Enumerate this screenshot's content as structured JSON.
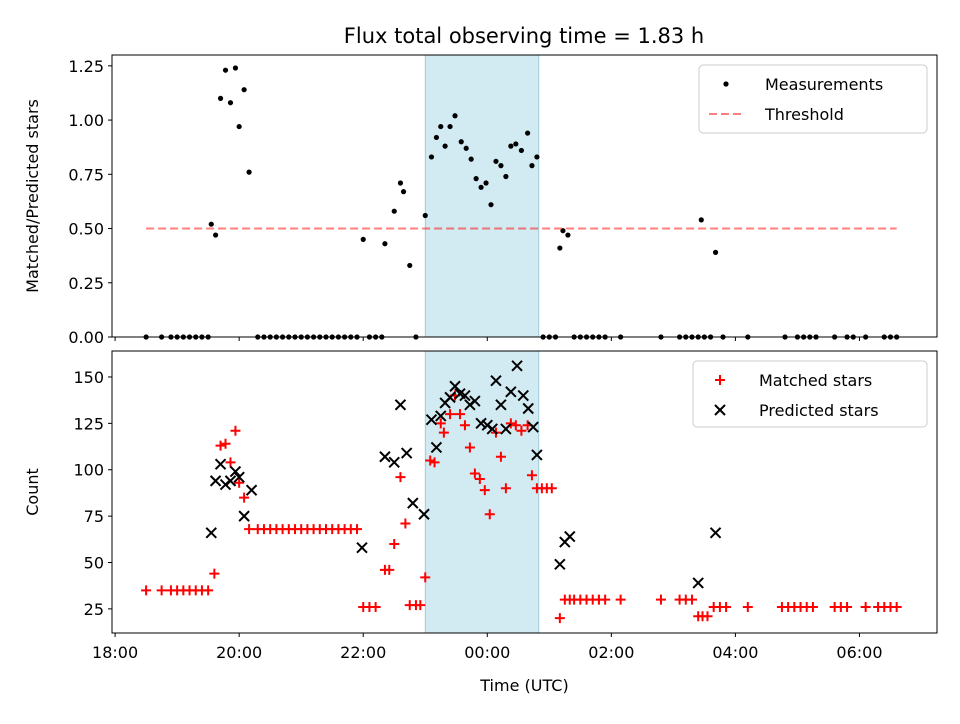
{
  "figure": {
    "title": "Flux total observing time = 1.83 h"
  },
  "chart_data": [
    {
      "type": "scatter",
      "ylabel": "Matched/Predicted stars",
      "xlabel": "",
      "x_unit": "hours since 18:00 UTC on axis",
      "xlim": [
        -0.05,
        13.25
      ],
      "ylim": [
        0,
        1.3
      ],
      "yticks": [
        0,
        0.25,
        0.5,
        0.75,
        1.0,
        1.25
      ],
      "ytick_labels": [
        "0.00",
        "0.25",
        "0.50",
        "0.75",
        "1.00",
        "1.25"
      ],
      "highlight_span": {
        "x0": 5.0,
        "x1": 6.83,
        "color": "#add8e6"
      },
      "legend": {
        "placement": "top-right"
      },
      "series": [
        {
          "name": "Measurements",
          "kind": "scatter",
          "marker": "dot",
          "color": "#000000",
          "points": [
            [
              0.5,
              0
            ],
            [
              0.75,
              0
            ],
            [
              0.9,
              0
            ],
            [
              1.0,
              0
            ],
            [
              1.1,
              0
            ],
            [
              1.2,
              0
            ],
            [
              1.3,
              0
            ],
            [
              1.4,
              0
            ],
            [
              1.5,
              0
            ],
            [
              1.55,
              0.52
            ],
            [
              1.62,
              0.47
            ],
            [
              1.7,
              1.1
            ],
            [
              1.78,
              1.23
            ],
            [
              1.86,
              1.08
            ],
            [
              1.94,
              1.24
            ],
            [
              2.0,
              0.97
            ],
            [
              2.08,
              1.14
            ],
            [
              2.16,
              0.76
            ],
            [
              2.3,
              0
            ],
            [
              2.4,
              0
            ],
            [
              2.5,
              0
            ],
            [
              2.6,
              0
            ],
            [
              2.7,
              0
            ],
            [
              2.8,
              0
            ],
            [
              2.9,
              0
            ],
            [
              3.0,
              0
            ],
            [
              3.1,
              0
            ],
            [
              3.2,
              0
            ],
            [
              3.3,
              0
            ],
            [
              3.4,
              0
            ],
            [
              3.5,
              0
            ],
            [
              3.6,
              0
            ],
            [
              3.7,
              0
            ],
            [
              3.8,
              0
            ],
            [
              3.9,
              0
            ],
            [
              4.0,
              0.45
            ],
            [
              4.1,
              0
            ],
            [
              4.2,
              0
            ],
            [
              4.3,
              0
            ],
            [
              4.35,
              0.43
            ],
            [
              4.5,
              0.58
            ],
            [
              4.6,
              0.71
            ],
            [
              4.65,
              0.67
            ],
            [
              4.75,
              0.33
            ],
            [
              4.85,
              0
            ],
            [
              5.0,
              0.56
            ],
            [
              5.1,
              0.83
            ],
            [
              5.18,
              0.92
            ],
            [
              5.25,
              0.97
            ],
            [
              5.32,
              0.88
            ],
            [
              5.4,
              0.97
            ],
            [
              5.48,
              1.02
            ],
            [
              5.58,
              0.9
            ],
            [
              5.66,
              0.87
            ],
            [
              5.74,
              0.82
            ],
            [
              5.82,
              0.73
            ],
            [
              5.9,
              0.69
            ],
            [
              5.98,
              0.71
            ],
            [
              6.06,
              0.61
            ],
            [
              6.14,
              0.81
            ],
            [
              6.22,
              0.79
            ],
            [
              6.3,
              0.74
            ],
            [
              6.38,
              0.88
            ],
            [
              6.46,
              0.89
            ],
            [
              6.55,
              0.86
            ],
            [
              6.65,
              0.94
            ],
            [
              6.72,
              0.79
            ],
            [
              6.8,
              0.83
            ],
            [
              6.9,
              0
            ],
            [
              7.0,
              0
            ],
            [
              7.1,
              0
            ],
            [
              7.17,
              0.41
            ],
            [
              7.22,
              0.49
            ],
            [
              7.3,
              0.47
            ],
            [
              7.4,
              0
            ],
            [
              7.5,
              0
            ],
            [
              7.6,
              0
            ],
            [
              7.7,
              0
            ],
            [
              7.8,
              0
            ],
            [
              7.9,
              0
            ],
            [
              8.15,
              0
            ],
            [
              8.8,
              0
            ],
            [
              9.1,
              0
            ],
            [
              9.2,
              0
            ],
            [
              9.3,
              0
            ],
            [
              9.4,
              0
            ],
            [
              9.45,
              0.54
            ],
            [
              9.5,
              0
            ],
            [
              9.6,
              0
            ],
            [
              9.68,
              0.39
            ],
            [
              9.8,
              0
            ],
            [
              10.2,
              0
            ],
            [
              10.8,
              0
            ],
            [
              11.0,
              0
            ],
            [
              11.1,
              0
            ],
            [
              11.2,
              0
            ],
            [
              11.3,
              0
            ],
            [
              11.6,
              0
            ],
            [
              11.8,
              0
            ],
            [
              11.9,
              0
            ],
            [
              12.1,
              0
            ],
            [
              12.4,
              0
            ],
            [
              12.5,
              0
            ],
            [
              12.6,
              0
            ]
          ]
        },
        {
          "name": "Threshold",
          "kind": "line",
          "dash": "dashed",
          "color": "#ff0000",
          "alpha": 0.5,
          "points": [
            [
              0.5,
              0.5
            ],
            [
              12.6,
              0.5
            ]
          ]
        }
      ]
    },
    {
      "type": "scatter",
      "ylabel": "Count",
      "xlabel": "Time (UTC)",
      "x_unit": "hours since 18:00 UTC on axis",
      "xlim": [
        -0.05,
        13.25
      ],
      "ylim": [
        12,
        164
      ],
      "yticks": [
        25,
        50,
        75,
        100,
        125,
        150
      ],
      "ytick_labels": [
        "25",
        "50",
        "75",
        "100",
        "125",
        "150"
      ],
      "xticks": [
        0,
        2,
        4,
        6,
        8,
        10,
        12
      ],
      "xtick_labels": [
        "18:00",
        "20:00",
        "22:00",
        "00:00",
        "02:00",
        "04:00",
        "06:00"
      ],
      "highlight_span": {
        "x0": 5.0,
        "x1": 6.83,
        "color": "#add8e6"
      },
      "legend": {
        "placement": "top-right"
      },
      "series": [
        {
          "name": "Matched stars",
          "kind": "scatter",
          "marker": "plus",
          "color": "#ff0000",
          "points": [
            [
              0.5,
              35
            ],
            [
              0.75,
              35
            ],
            [
              0.9,
              35
            ],
            [
              1.0,
              35
            ],
            [
              1.1,
              35
            ],
            [
              1.2,
              35
            ],
            [
              1.3,
              35
            ],
            [
              1.4,
              35
            ],
            [
              1.5,
              35
            ],
            [
              1.6,
              44
            ],
            [
              1.7,
              113
            ],
            [
              1.78,
              114
            ],
            [
              1.86,
              104
            ],
            [
              1.94,
              121
            ],
            [
              2.0,
              93
            ],
            [
              2.08,
              85
            ],
            [
              2.16,
              68
            ],
            [
              2.3,
              68
            ],
            [
              2.4,
              68
            ],
            [
              2.5,
              68
            ],
            [
              2.6,
              68
            ],
            [
              2.7,
              68
            ],
            [
              2.8,
              68
            ],
            [
              2.9,
              68
            ],
            [
              3.0,
              68
            ],
            [
              3.1,
              68
            ],
            [
              3.2,
              68
            ],
            [
              3.3,
              68
            ],
            [
              3.4,
              68
            ],
            [
              3.5,
              68
            ],
            [
              3.6,
              68
            ],
            [
              3.7,
              68
            ],
            [
              3.8,
              68
            ],
            [
              3.9,
              68
            ],
            [
              4.0,
              26
            ],
            [
              4.1,
              26
            ],
            [
              4.2,
              26
            ],
            [
              4.35,
              46
            ],
            [
              4.42,
              46
            ],
            [
              4.5,
              60
            ],
            [
              4.6,
              96
            ],
            [
              4.68,
              71
            ],
            [
              4.75,
              27
            ],
            [
              4.85,
              27
            ],
            [
              4.92,
              27
            ],
            [
              5.0,
              42
            ],
            [
              5.08,
              105
            ],
            [
              5.15,
              104
            ],
            [
              5.25,
              125
            ],
            [
              5.3,
              120
            ],
            [
              5.4,
              130
            ],
            [
              5.48,
              140
            ],
            [
              5.56,
              130
            ],
            [
              5.64,
              124
            ],
            [
              5.72,
              112
            ],
            [
              5.8,
              98
            ],
            [
              5.88,
              95
            ],
            [
              5.96,
              89
            ],
            [
              6.04,
              76
            ],
            [
              6.14,
              120
            ],
            [
              6.22,
              107
            ],
            [
              6.3,
              90
            ],
            [
              6.38,
              125
            ],
            [
              6.46,
              124
            ],
            [
              6.55,
              121
            ],
            [
              6.65,
              124
            ],
            [
              6.72,
              97
            ],
            [
              6.8,
              90
            ],
            [
              6.88,
              90
            ],
            [
              6.96,
              90
            ],
            [
              7.04,
              90
            ],
            [
              7.17,
              20
            ],
            [
              7.25,
              30
            ],
            [
              7.33,
              30
            ],
            [
              7.4,
              30
            ],
            [
              7.5,
              30
            ],
            [
              7.6,
              30
            ],
            [
              7.7,
              30
            ],
            [
              7.8,
              30
            ],
            [
              7.9,
              30
            ],
            [
              8.15,
              30
            ],
            [
              8.8,
              30
            ],
            [
              9.1,
              30
            ],
            [
              9.2,
              30
            ],
            [
              9.3,
              30
            ],
            [
              9.4,
              21
            ],
            [
              9.47,
              21
            ],
            [
              9.55,
              21
            ],
            [
              9.65,
              26
            ],
            [
              9.75,
              26
            ],
            [
              9.85,
              26
            ],
            [
              10.2,
              26
            ],
            [
              10.75,
              26
            ],
            [
              10.85,
              26
            ],
            [
              10.95,
              26
            ],
            [
              11.05,
              26
            ],
            [
              11.15,
              26
            ],
            [
              11.25,
              26
            ],
            [
              11.6,
              26
            ],
            [
              11.7,
              26
            ],
            [
              11.8,
              26
            ],
            [
              12.1,
              26
            ],
            [
              12.3,
              26
            ],
            [
              12.4,
              26
            ],
            [
              12.5,
              26
            ],
            [
              12.6,
              26
            ]
          ]
        },
        {
          "name": "Predicted stars",
          "kind": "scatter",
          "marker": "x",
          "color": "#000000",
          "points": [
            [
              1.55,
              66
            ],
            [
              1.62,
              94
            ],
            [
              1.7,
              103
            ],
            [
              1.78,
              92
            ],
            [
              1.86,
              94
            ],
            [
              1.94,
              99
            ],
            [
              2.0,
              96
            ],
            [
              2.08,
              75
            ],
            [
              2.2,
              89
            ],
            [
              3.98,
              58
            ],
            [
              4.35,
              107
            ],
            [
              4.5,
              104
            ],
            [
              4.6,
              135
            ],
            [
              4.7,
              109
            ],
            [
              4.8,
              82
            ],
            [
              4.98,
              76
            ],
            [
              5.1,
              127
            ],
            [
              5.18,
              112
            ],
            [
              5.25,
              129
            ],
            [
              5.32,
              136
            ],
            [
              5.4,
              139
            ],
            [
              5.48,
              145
            ],
            [
              5.56,
              141
            ],
            [
              5.64,
              140
            ],
            [
              5.72,
              135
            ],
            [
              5.8,
              137
            ],
            [
              5.9,
              125
            ],
            [
              6.0,
              124
            ],
            [
              6.08,
              122
            ],
            [
              6.14,
              148
            ],
            [
              6.22,
              135
            ],
            [
              6.3,
              122
            ],
            [
              6.38,
              142
            ],
            [
              6.48,
              156
            ],
            [
              6.58,
              140
            ],
            [
              6.66,
              133
            ],
            [
              6.74,
              123
            ],
            [
              6.8,
              108
            ],
            [
              7.17,
              49
            ],
            [
              7.25,
              61
            ],
            [
              7.33,
              64
            ],
            [
              9.4,
              39
            ],
            [
              9.68,
              66
            ]
          ]
        }
      ]
    }
  ]
}
